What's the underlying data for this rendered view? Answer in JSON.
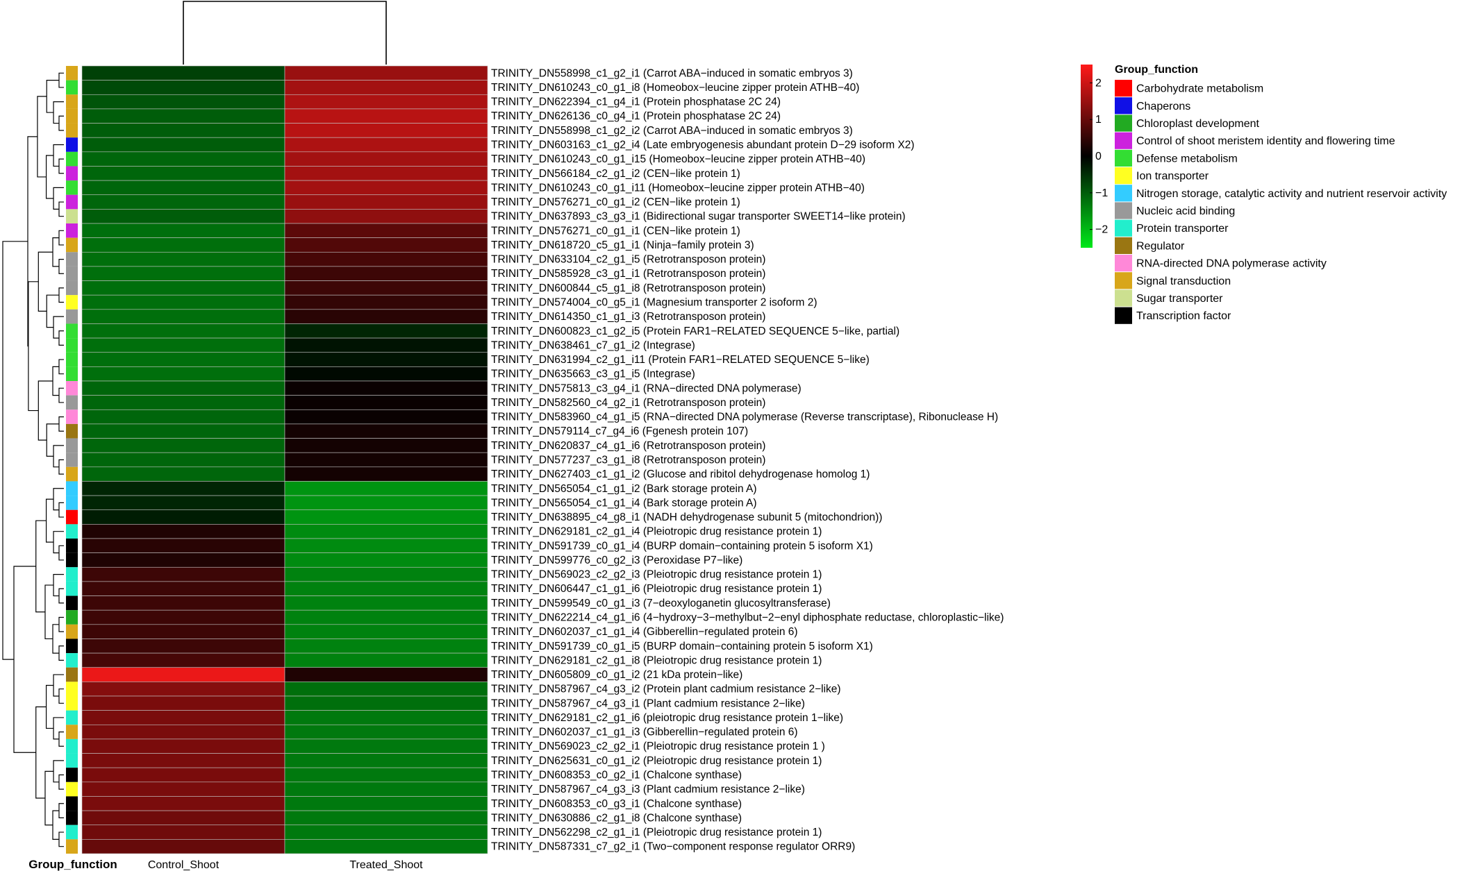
{
  "chart_data": {
    "type": "heatmap",
    "columns": [
      "Control_Shoot",
      "Treated_Shoot"
    ],
    "annotation_label": "Group_function",
    "color_scale": {
      "min": -2.5,
      "max": 2.5,
      "ticks": [
        2,
        1,
        0,
        -1,
        -2
      ],
      "low_color": "#00e81a",
      "mid_color": "#000000",
      "high_color": "#ff1a1a"
    },
    "legend": {
      "title": "Group_function",
      "items": [
        {
          "label": "Carbohydrate metabolism",
          "color": "#ff0000"
        },
        {
          "label": "Chaperons",
          "color": "#1010e6"
        },
        {
          "label": "Chloroplast development",
          "color": "#22aa22"
        },
        {
          "label": "Control of shoot meristem identity and flowering time",
          "color": "#cc22dd"
        },
        {
          "label": "Defense metabolism",
          "color": "#33dd33"
        },
        {
          "label": "Ion transporter",
          "color": "#ffff22"
        },
        {
          "label": "Nitrogen storage, catalytic activity and nutrient reservoir activity",
          "color": "#33ccff"
        },
        {
          "label": "Nucleic acid binding",
          "color": "#999999"
        },
        {
          "label": "Protein transporter",
          "color": "#22eecc"
        },
        {
          "label": "Regulator",
          "color": "#9a7612"
        },
        {
          "label": "RNA-directed DNA polymerase activity",
          "color": "#ff88d8"
        },
        {
          "label": "Signal transduction",
          "color": "#d8a61a"
        },
        {
          "label": "Sugar transporter",
          "color": "#cce090"
        },
        {
          "label": "Transcription factor",
          "color": "#000000"
        }
      ]
    },
    "rows": [
      {
        "label": "TRINITY_DN558998_c1_g2_i1 (Carrot ABA−induced in somatic embryos 3)",
        "group": "Signal transduction",
        "values": [
          -0.7,
          1.5
        ]
      },
      {
        "label": "TRINITY_DN610243_c0_g1_i8 (Homeobox−leucine zipper protein ATHB−40)",
        "group": "Defense metabolism",
        "values": [
          -0.8,
          1.6
        ]
      },
      {
        "label": "TRINITY_DN622394_c1_g4_i1 (Protein phosphatase 2C 24)",
        "group": "Signal transduction",
        "values": [
          -0.9,
          1.7
        ]
      },
      {
        "label": "TRINITY_DN626136_c0_g4_i1 (Protein phosphatase 2C 24)",
        "group": "Signal transduction",
        "values": [
          -1.0,
          1.8
        ]
      },
      {
        "label": "TRINITY_DN558998_c1_g2_i2 (Carrot ABA−induced in somatic embryos 3)",
        "group": "Signal transduction",
        "values": [
          -1.0,
          1.8
        ]
      },
      {
        "label": "TRINITY_DN603163_c1_g2_i4 (Late embryogenesis abundant protein D−29 isoform X2)",
        "group": "Chaperons",
        "values": [
          -1.0,
          1.7
        ]
      },
      {
        "label": "TRINITY_DN610243_c0_g1_i15 (Homeobox−leucine zipper protein ATHB−40)",
        "group": "Defense metabolism",
        "values": [
          -1.1,
          1.6
        ]
      },
      {
        "label": "TRINITY_DN566184_c2_g1_i2 (CEN−like protein 1)",
        "group": "Control of shoot meristem identity and flowering time",
        "values": [
          -1.1,
          1.6
        ]
      },
      {
        "label": "TRINITY_DN610243_c0_g1_i11 (Homeobox−leucine zipper protein ATHB−40)",
        "group": "Defense metabolism",
        "values": [
          -1.1,
          1.6
        ]
      },
      {
        "label": "TRINITY_DN576271_c0_g1_i2 (CEN−like protein 1)",
        "group": "Control of shoot meristem identity and flowering time",
        "values": [
          -1.1,
          1.5
        ]
      },
      {
        "label": "TRINITY_DN637893_c3_g3_i1 (Bidirectional sugar transporter SWEET14−like protein)",
        "group": "Sugar transporter",
        "values": [
          -1.0,
          1.4
        ]
      },
      {
        "label": "TRINITY_DN576271_c0_g1_i1 (CEN−like protein 1)",
        "group": "Control of shoot meristem identity and flowering time",
        "values": [
          -1.2,
          0.9
        ]
      },
      {
        "label": "TRINITY_DN618720_c5_g1_i1 (Ninja−family protein 3)",
        "group": "Signal transduction",
        "values": [
          -1.2,
          0.8
        ]
      },
      {
        "label": "TRINITY_DN633104_c2_g1_i5 (Retrotransposon protein)",
        "group": "Nucleic acid binding",
        "values": [
          -1.2,
          0.7
        ]
      },
      {
        "label": "TRINITY_DN585928_c3_g1_i1 (Retrotransposon protein)",
        "group": "Nucleic acid binding",
        "values": [
          -1.2,
          0.6
        ]
      },
      {
        "label": "TRINITY_DN600844_c5_g1_i8 (Retrotransposon protein)",
        "group": "Nucleic acid binding",
        "values": [
          -1.2,
          0.6
        ]
      },
      {
        "label": "TRINITY_DN574004_c0_g5_i1 (Magnesium transporter 2 isoform 2)",
        "group": "Ion transporter",
        "values": [
          -1.2,
          0.5
        ]
      },
      {
        "label": "TRINITY_DN614350_c1_g1_i3 (Retrotransposon protein)",
        "group": "Nucleic acid binding",
        "values": [
          -1.2,
          0.4
        ]
      },
      {
        "label": "TRINITY_DN600823_c1_g2_i5 (Protein FAR1−RELATED SEQUENCE 5−like, partial)",
        "group": "Defense metabolism",
        "values": [
          -1.2,
          -0.4
        ]
      },
      {
        "label": "TRINITY_DN638461_c7_g1_i2 (Integrase)",
        "group": "Defense metabolism",
        "values": [
          -1.2,
          -0.2
        ]
      },
      {
        "label": "TRINITY_DN631994_c2_g1_i11 (Protein FAR1−RELATED SEQUENCE 5−like)",
        "group": "Defense metabolism",
        "values": [
          -1.2,
          -0.2
        ]
      },
      {
        "label": "TRINITY_DN635663_c3_g1_i5 (Integrase)",
        "group": "Defense metabolism",
        "values": [
          -1.2,
          -0.1
        ]
      },
      {
        "label": "TRINITY_DN575813_c3_g4_i1 (RNA−directed DNA polymerase)",
        "group": "RNA-directed DNA polymerase activity",
        "values": [
          -1.1,
          0.1
        ]
      },
      {
        "label": "TRINITY_DN582560_c4_g2_i1 (Retrotransposon protein)",
        "group": "Nucleic acid binding",
        "values": [
          -1.1,
          0.1
        ]
      },
      {
        "label": "TRINITY_DN583960_c4_g1_i5 (RNA−directed DNA polymerase (Reverse transcriptase), Ribonuclease H)",
        "group": "RNA-directed DNA polymerase activity",
        "values": [
          -1.1,
          0.1
        ]
      },
      {
        "label": "TRINITY_DN579114_c7_g4_i6 (Fgenesh protein 107)",
        "group": "Regulator",
        "values": [
          -1.1,
          0.2
        ]
      },
      {
        "label": "TRINITY_DN620837_c4_g1_i6 (Retrotransposon protein)",
        "group": "Nucleic acid binding",
        "values": [
          -1.1,
          0.2
        ]
      },
      {
        "label": "TRINITY_DN577237_c3_g1_i8 (Retrotransposon protein)",
        "group": "Nucleic acid binding",
        "values": [
          -1.1,
          0.2
        ]
      },
      {
        "label": "TRINITY_DN627403_c1_g1_i2 (Glucose and ribitol dehydrogenase homolog 1)",
        "group": "Signal transduction",
        "values": [
          -1.1,
          0.2
        ]
      },
      {
        "label": "TRINITY_DN565054_c1_g1_i2 (Bark storage protein A)",
        "group": "Nitrogen storage, catalytic activity and nutrient reservoir activity",
        "values": [
          -0.4,
          -1.6
        ]
      },
      {
        "label": "TRINITY_DN565054_c1_g1_i4 (Bark storage protein A)",
        "group": "Nitrogen storage, catalytic activity and nutrient reservoir activity",
        "values": [
          -0.4,
          -1.6
        ]
      },
      {
        "label": "TRINITY_DN638895_c4_g8_i1 (NADH dehydrogenase subunit 5 (mitochondrion))",
        "group": "Carbohydrate metabolism",
        "values": [
          -0.3,
          -1.6
        ]
      },
      {
        "label": "TRINITY_DN629181_c2_g1_i4 (Pleiotropic drug resistance protein 1)",
        "group": "Protein transporter",
        "values": [
          0.3,
          -1.5
        ]
      },
      {
        "label": "TRINITY_DN591739_c0_g1_i4 (BURP domain−containing protein 5 isoform X1)",
        "group": "Transcription factor",
        "values": [
          0.4,
          -1.5
        ]
      },
      {
        "label": "TRINITY_DN599776_c0_g2_i3 (Peroxidase P7−like)",
        "group": "Transcription factor",
        "values": [
          0.3,
          -1.5
        ]
      },
      {
        "label": "TRINITY_DN569023_c2_g2_i3 (Pleiotropic drug resistance protein 1)",
        "group": "Protein transporter",
        "values": [
          0.6,
          -1.4
        ]
      },
      {
        "label": "TRINITY_DN606447_c1_g1_i6 (Pleiotropic drug resistance protein 1)",
        "group": "Protein transporter",
        "values": [
          0.6,
          -1.4
        ]
      },
      {
        "label": "TRINITY_DN599549_c0_g1_i3 (7−deoxyloganetin glucosyltransferase)",
        "group": "Transcription factor",
        "values": [
          0.6,
          -1.4
        ]
      },
      {
        "label": "TRINITY_DN622214_c4_g1_i6 (4−hydroxy−3−methylbut−2−enyl diphosphate reductase, chloroplastic−like)",
        "group": "Chloroplast development",
        "values": [
          0.6,
          -1.4
        ]
      },
      {
        "label": "TRINITY_DN602037_c1_g1_i4 (Gibberellin−regulated protein 6)",
        "group": "Signal transduction",
        "values": [
          0.6,
          -1.4
        ]
      },
      {
        "label": "TRINITY_DN591739_c0_g1_i5 (BURP domain−containing protein 5 isoform X1)",
        "group": "Transcription factor",
        "values": [
          0.6,
          -1.4
        ]
      },
      {
        "label": "TRINITY_DN629181_c2_g1_i8 (Pleiotropic drug resistance protein 1)",
        "group": "Protein transporter",
        "values": [
          0.7,
          -1.4
        ]
      },
      {
        "label": "TRINITY_DN605809_c0_g1_i2 (21 kDa protein−like)",
        "group": "Regulator",
        "values": [
          2.3,
          0.3
        ]
      },
      {
        "label": "TRINITY_DN587967_c4_g3_i2 (Protein plant cadmium resistance 2−like)",
        "group": "Ion transporter",
        "values": [
          1.3,
          -1.2
        ]
      },
      {
        "label": "TRINITY_DN587967_c4_g3_i1 (Plant cadmium resistance 2−like)",
        "group": "Ion transporter",
        "values": [
          1.2,
          -1.2
        ]
      },
      {
        "label": "TRINITY_DN629181_c2_g1_i6 (pleiotropic drug resistance protein 1−like)",
        "group": "Protein transporter",
        "values": [
          1.2,
          -1.3
        ]
      },
      {
        "label": "TRINITY_DN602037_c1_g1_i3 (Gibberellin−regulated protein 6)",
        "group": "Signal transduction",
        "values": [
          1.2,
          -1.3
        ]
      },
      {
        "label": "TRINITY_DN569023_c2_g2_i1 (Pleiotropic drug resistance protein 1 )",
        "group": "Protein transporter",
        "values": [
          1.2,
          -1.3
        ]
      },
      {
        "label": "TRINITY_DN625631_c0_g1_i2 (Pleiotropic drug resistance protein 1)",
        "group": "Protein transporter",
        "values": [
          1.2,
          -1.3
        ]
      },
      {
        "label": "TRINITY_DN608353_c0_g2_i1 (Chalcone synthase)",
        "group": "Transcription factor",
        "values": [
          1.2,
          -1.3
        ]
      },
      {
        "label": "TRINITY_DN587967_c4_g3_i3 (Plant cadmium resistance 2−like)",
        "group": "Ion transporter",
        "values": [
          1.2,
          -1.3
        ]
      },
      {
        "label": "TRINITY_DN608353_c0_g3_i1 (Chalcone synthase)",
        "group": "Transcription factor",
        "values": [
          1.2,
          -1.3
        ]
      },
      {
        "label": "TRINITY_DN630886_c2_g1_i8 (Chalcone synthase)",
        "group": "Transcription factor",
        "values": [
          1.1,
          -1.3
        ]
      },
      {
        "label": "TRINITY_DN562298_c2_g1_i1 (Pleiotropic drug resistance protein 1)",
        "group": "Protein transporter",
        "values": [
          1.1,
          -1.3
        ]
      },
      {
        "label": "TRINITY_DN587331_c7_g2_i1 (Two−component response regulator ORR9)",
        "group": "Signal transduction",
        "values": [
          1.0,
          -1.3
        ]
      }
    ]
  }
}
